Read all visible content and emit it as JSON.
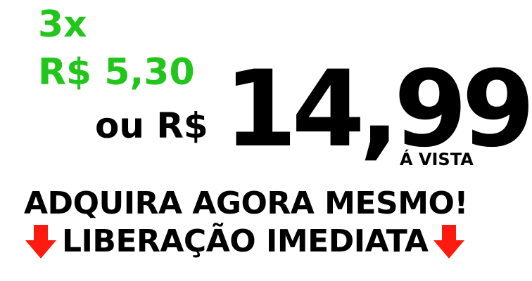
{
  "promo": {
    "installments": "3x",
    "installment_value": "R$ 5,30",
    "or_currency": "ou R$",
    "price": "14,99",
    "cash_label": "Á VISTA",
    "headline": "ADQUIRA AGORA MESMO!",
    "release": "LIBERAÇÃO IMEDIATA"
  },
  "colors": {
    "green": "#22c51b",
    "red": "#ff1a10",
    "text": "#000000"
  },
  "icons": {
    "left": "arrow-down-icon",
    "right": "arrow-down-icon"
  }
}
